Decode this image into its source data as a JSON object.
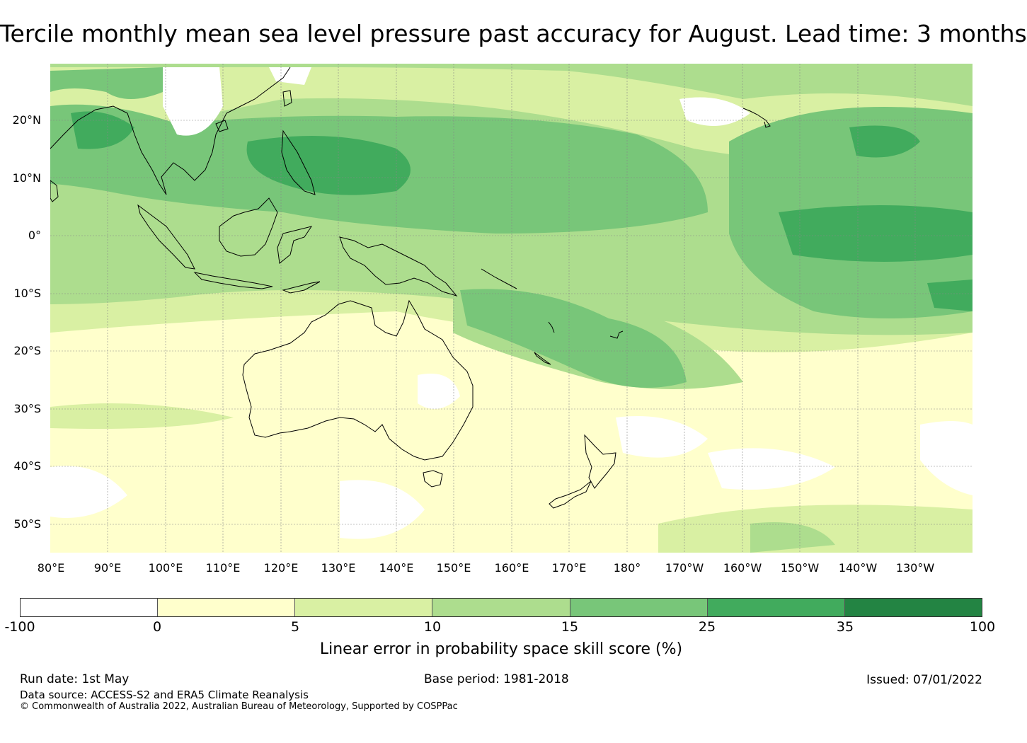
{
  "title": "Tercile monthly mean sea level pressure past accuracy for August. Lead time: 3 months",
  "map": {
    "lat_labels": [
      "20°N",
      "10°N",
      "0°",
      "10°S",
      "20°S",
      "30°S",
      "40°S",
      "50°S"
    ],
    "lon_labels": [
      "80°E",
      "90°E",
      "100°E",
      "110°E",
      "120°E",
      "130°E",
      "140°E",
      "150°E",
      "160°E",
      "170°E",
      "180°",
      "170°W",
      "160°W",
      "150°W",
      "140°W",
      "130°W"
    ],
    "region": "Australia and western Pacific"
  },
  "colorbar": {
    "ticks": [
      "-100",
      "0",
      "5",
      "10",
      "15",
      "25",
      "35",
      "100"
    ],
    "colors": [
      "#ffffff",
      "#ffffcc",
      "#d9f0a3",
      "#addd8e",
      "#78c679",
      "#41ab5d",
      "#238443"
    ],
    "label": "Linear error in probability space skill score (%)"
  },
  "footer": {
    "run_date": "Run date: 1st May",
    "base_period": "Base period: 1981-2018",
    "issued": "Issued: 07/01/2022",
    "data_source": "Data source: ACCESS-S2 and ERA5 Climate Reanalysis",
    "copyright": "© Commonwealth of Australia 2022, Australian Bureau of Meteorology, Supported by COSPPac"
  }
}
